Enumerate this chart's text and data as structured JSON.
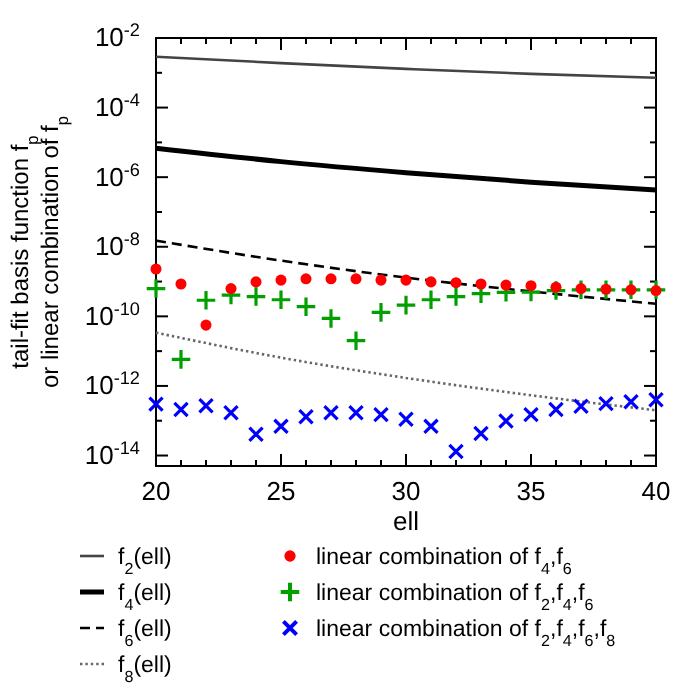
{
  "chart_data": {
    "type": "line",
    "xlabel": "ell",
    "ylabel": "tail-fit basis function f$_{p}$\nor linear combination of f$_{p}$",
    "log": "y",
    "xlim": [
      20,
      40
    ],
    "ylim": [
      5e-15,
      0.01
    ],
    "xticks": [
      20,
      {
        "value": 21,
        "label": null
      },
      {
        "value": 22,
        "label": null
      },
      {
        "value": 23,
        "label": null
      },
      {
        "value": 24,
        "label": null
      },
      25,
      {
        "value": 26,
        "label": null
      },
      {
        "value": 27,
        "label": null
      },
      {
        "value": 28,
        "label": null
      },
      {
        "value": 29,
        "label": null
      },
      30,
      {
        "value": 31,
        "label": null
      },
      {
        "value": 32,
        "label": null
      },
      {
        "value": 33,
        "label": null
      },
      {
        "value": 34,
        "label": null
      },
      35,
      {
        "value": 36,
        "label": null
      },
      {
        "value": 37,
        "label": null
      },
      {
        "value": 38,
        "label": null
      },
      {
        "value": 39,
        "label": null
      },
      40
    ],
    "yticks": [
      {
        "value": 1e-14,
        "label": "10$^{-14}$"
      },
      {
        "value": 1e-13,
        "label": null
      },
      {
        "value": 1e-12,
        "label": "10$^{-12}$"
      },
      {
        "value": 1e-11,
        "label": null
      },
      {
        "value": 1e-10,
        "label": "10$^{-10}$"
      },
      {
        "value": 1e-09,
        "label": null
      },
      {
        "value": 1e-08,
        "label": "10$^{-8}$"
      },
      {
        "value": 1e-07,
        "label": null
      },
      {
        "value": 1e-06,
        "label": "10$^{-6}$"
      },
      {
        "value": 1e-05,
        "label": null
      },
      {
        "value": 0.0001,
        "label": "10$^{-4}$"
      },
      {
        "value": 0.001,
        "label": null
      },
      {
        "value": 0.01,
        "label": "10$^{-2}$"
      }
    ],
    "grid": false,
    "legend": "bottom",
    "series": [
      {
        "name": "f$_{2}$(ell)",
        "line_style": "solid",
        "color": "#444444",
        "x": [
          20,
          25,
          30,
          35,
          40
        ],
        "values": [
          0.0029,
          0.0019,
          0.0013,
          0.00093,
          0.00072
        ]
      },
      {
        "name": "f$_{4}$(ell)",
        "line_style": "solid",
        "color": "#000000",
        "x": [
          20,
          25,
          30,
          35,
          40
        ],
        "values": [
          6.8e-06,
          2.8e-06,
          1.35e-06,
          7.2e-07,
          4.3e-07
        ]
      },
      {
        "name": "f$_{6}$(ell)",
        "line_style": "dashed",
        "color": "#000000",
        "x": [
          20,
          25,
          30,
          35,
          40
        ],
        "values": [
          1.5e-08,
          4e-09,
          1.3e-09,
          5.2e-10,
          2.3e-10
        ]
      },
      {
        "name": "f$_{8}$(ell)",
        "line_style": "dotted",
        "color": "#666666",
        "x": [
          20,
          25,
          30,
          35,
          40
        ],
        "values": [
          3.4e-11,
          6.5e-12,
          1.7e-12,
          5.4e-13,
          2e-13
        ]
      },
      {
        "name": "linear combination of f$_{4}$,f$_{6}$",
        "type": "scatter",
        "marker": "circle",
        "color": "#ff0000",
        "x": [
          20,
          21,
          22,
          23,
          24,
          25,
          26,
          27,
          28,
          29,
          30,
          31,
          32,
          33,
          34,
          35,
          36,
          37,
          38,
          39,
          40
        ],
        "values": [
          2.3e-09,
          8.5e-10,
          5.6e-11,
          6.3e-10,
          9.8e-10,
          1.1e-09,
          1.2e-09,
          1.2e-09,
          1.2e-09,
          1.1e-09,
          1.1e-09,
          9.8e-10,
          9.3e-10,
          8.5e-10,
          7.9e-10,
          7.6e-10,
          6.9e-10,
          6.3e-10,
          6e-10,
          5.8e-10,
          5.5e-10
        ]
      },
      {
        "name": "linear combination of f$_{2}$,f$_{4}$,f$_{6}$",
        "type": "scatter",
        "marker": "cross",
        "color": "#00a000",
        "x": [
          20,
          21,
          22,
          23,
          24,
          25,
          26,
          27,
          28,
          29,
          30,
          31,
          32,
          33,
          34,
          35,
          36,
          37,
          38,
          39,
          40
        ],
        "values": [
          6.3e-10,
          5.8e-12,
          2.9e-10,
          4.1e-10,
          3.7e-10,
          3e-10,
          1.9e-10,
          8.7e-11,
          2e-11,
          1.3e-10,
          2.1e-10,
          3e-10,
          3.7e-10,
          4.5e-10,
          4.9e-10,
          5e-10,
          5.5e-10,
          5.8e-10,
          5.8e-10,
          5.8e-10,
          5.8e-10
        ]
      },
      {
        "name": "linear combination of f$_{2}$,f$_{4}$,f$_{6}$,f$_{8}$",
        "type": "scatter",
        "marker": "x",
        "color": "#0000ff",
        "x": [
          20,
          21,
          22,
          23,
          24,
          25,
          26,
          27,
          28,
          29,
          30,
          31,
          32,
          33,
          34,
          35,
          36,
          37,
          38,
          39,
          40
        ],
        "values": [
          3e-13,
          2.1e-13,
          2.7e-13,
          1.7e-13,
          4.1e-14,
          6.9e-14,
          1.3e-13,
          1.7e-13,
          1.7e-13,
          1.5e-13,
          1.1e-13,
          6.9e-14,
          1.3e-14,
          4.3e-14,
          9.8e-14,
          1.5e-13,
          2.1e-13,
          2.6e-13,
          3.1e-13,
          3.5e-13,
          4e-13
        ]
      }
    ]
  }
}
